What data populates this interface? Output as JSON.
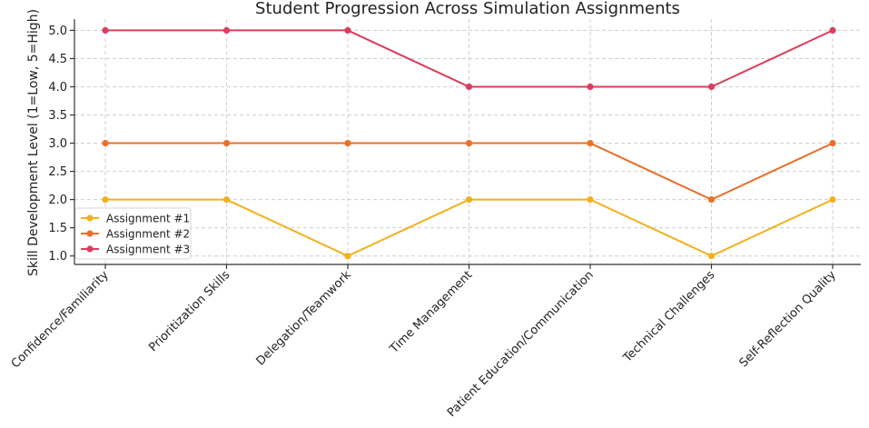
{
  "chart_data": {
    "type": "line",
    "title": "Student Progression Across Simulation Assignments",
    "xlabel": "",
    "ylabel": "Skill Development Level (1=Low, 5=High)",
    "categories": [
      "Confidence/Familiarity",
      "Prioritization Skills",
      "Delegation/Teamwork",
      "Time Management",
      "Patient Education/Communication",
      "Technical Challenges",
      "Self-Reflection Quality"
    ],
    "ylim": [
      0.85,
      5.2
    ],
    "yticks": [
      "1.0",
      "1.5",
      "2.0",
      "2.5",
      "3.0",
      "3.5",
      "4.0",
      "4.5",
      "5.0"
    ],
    "grid": true,
    "legend_position": "lower-left",
    "series": [
      {
        "name": "Assignment #1",
        "color": "#f2b01e",
        "values": [
          2,
          2,
          1,
          2,
          2,
          1,
          2
        ]
      },
      {
        "name": "Assignment #2",
        "color": "#e8702a",
        "values": [
          3,
          3,
          3,
          3,
          3,
          2,
          3
        ]
      },
      {
        "name": "Assignment #3",
        "color": "#dc3d5e",
        "values": [
          5,
          5,
          5,
          4,
          4,
          4,
          5
        ]
      }
    ]
  }
}
